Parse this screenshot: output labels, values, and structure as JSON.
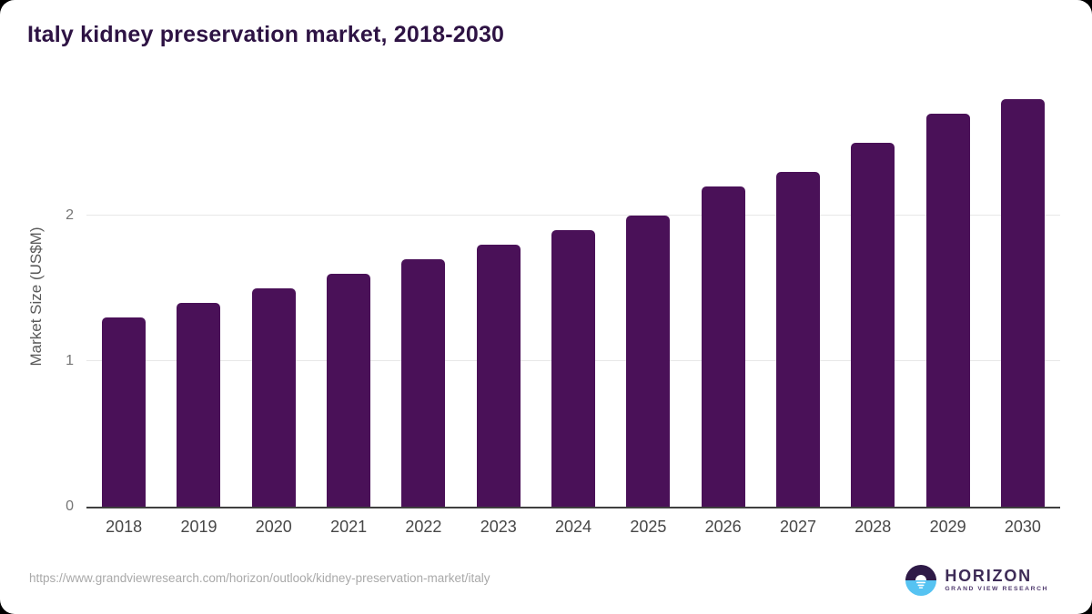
{
  "title": "Italy kidney preservation market, 2018-2030",
  "chart_data": {
    "type": "bar",
    "title": "Italy kidney preservation market, 2018-2030",
    "categories": [
      "2018",
      "2019",
      "2020",
      "2021",
      "2022",
      "2023",
      "2024",
      "2025",
      "2026",
      "2027",
      "2028",
      "2029",
      "2030"
    ],
    "values": [
      1.3,
      1.4,
      1.5,
      1.6,
      1.7,
      1.8,
      1.9,
      2.0,
      2.2,
      2.3,
      2.5,
      2.7,
      2.8
    ],
    "xlabel": "",
    "ylabel": "Market Size (US$M)",
    "ylim": [
      0,
      2.89
    ],
    "yticks": [
      0,
      1,
      2
    ],
    "grid": "horizontal-only",
    "legend": "none",
    "bar_color": "#4a1158"
  },
  "colors": {
    "title_text": "#2e1344",
    "bar": "#4a1158",
    "axis_line": "#3f3f3f",
    "gridline": "#e7e7e7",
    "tick_text": "#757575",
    "x_label_text": "#474747",
    "url_text": "#a9a9a9",
    "logo_dark_purple": "#2e1a47",
    "logo_light_blue": "#56c3f2",
    "logo_text_purple": "#3d2b56"
  },
  "footer": {
    "source_url": "https://www.grandviewresearch.com/horizon/outlook/kidney-preservation-market/italy",
    "logo_title": "HORIZON",
    "logo_subtitle": "GRAND VIEW RESEARCH"
  }
}
